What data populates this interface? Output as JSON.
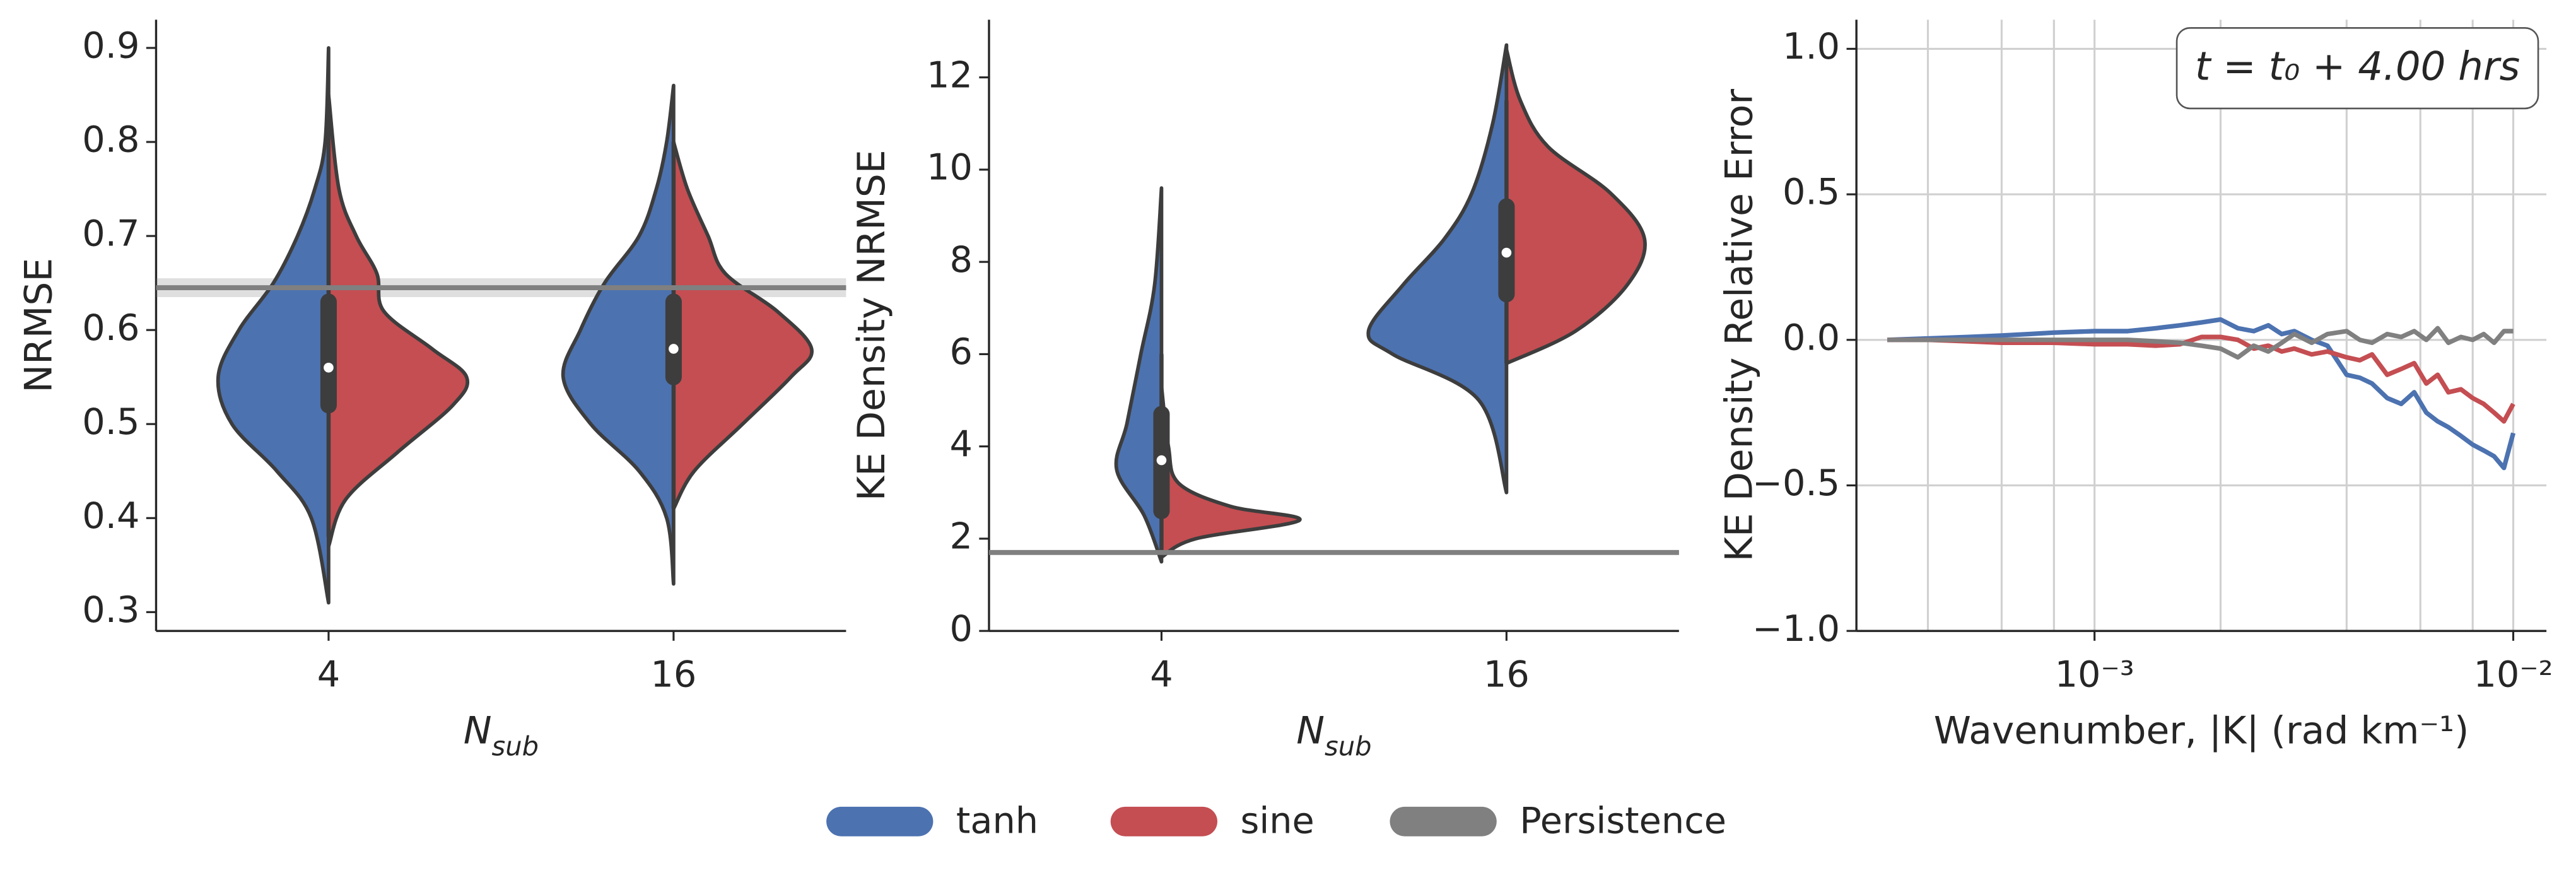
{
  "chart_data": [
    {
      "type": "violin",
      "ylabel": "NRMSE",
      "xlabel": "N",
      "xlabel_sub": "sub",
      "categories": [
        "4",
        "16"
      ],
      "ylim": [
        0.28,
        0.93
      ],
      "yticks": [
        0.3,
        0.4,
        0.5,
        0.6,
        0.7,
        0.8,
        0.9
      ],
      "series": [
        {
          "color": "#4c72b0",
          "side": "left",
          "violins": [
            {
              "y": [
                0.31,
                0.4,
                0.45,
                0.5,
                0.55,
                0.6,
                0.65,
                0.7,
                0.75,
                0.8,
                0.9
              ],
              "width": [
                0,
                0.05,
                0.15,
                0.28,
                0.32,
                0.26,
                0.16,
                0.09,
                0.04,
                0.01,
                0
              ]
            },
            {
              "y": [
                0.33,
                0.4,
                0.45,
                0.5,
                0.55,
                0.6,
                0.65,
                0.7,
                0.75,
                0.8,
                0.86
              ],
              "width": [
                0,
                0.02,
                0.1,
                0.24,
                0.32,
                0.27,
                0.2,
                0.1,
                0.05,
                0.02,
                0
              ]
            }
          ]
        },
        {
          "color": "#c44e52",
          "side": "right",
          "violins": [
            {
              "y": [
                0.37,
                0.42,
                0.47,
                0.52,
                0.55,
                0.58,
                0.62,
                0.66,
                0.7,
                0.75,
                0.85
              ],
              "width": [
                0,
                0.05,
                0.2,
                0.36,
                0.4,
                0.3,
                0.16,
                0.14,
                0.08,
                0.03,
                0
              ]
            },
            {
              "y": [
                0.41,
                0.45,
                0.5,
                0.55,
                0.58,
                0.62,
                0.66,
                0.7,
                0.75,
                0.8
              ],
              "width": [
                0,
                0.06,
                0.2,
                0.34,
                0.4,
                0.3,
                0.15,
                0.1,
                0.04,
                0
              ]
            }
          ]
        }
      ],
      "boxes": [
        {
          "whislo": 0.38,
          "q1": 0.52,
          "med": 0.56,
          "q3": 0.63,
          "whishi": 0.84
        },
        {
          "whislo": 0.41,
          "q1": 0.55,
          "med": 0.58,
          "q3": 0.63,
          "whishi": 0.8
        }
      ],
      "reference": {
        "value": 0.645,
        "ci": 0.01,
        "color": "#808080"
      }
    },
    {
      "type": "violin",
      "ylabel": "KE Density NRMSE",
      "xlabel": "N",
      "xlabel_sub": "sub",
      "categories": [
        "4",
        "16"
      ],
      "ylim": [
        0,
        13.25
      ],
      "yticks": [
        0,
        2,
        4,
        6,
        8,
        10,
        12
      ],
      "series": [
        {
          "color": "#4c72b0",
          "side": "left",
          "violins": [
            {
              "y": [
                1.5,
                2.5,
                3.5,
                4.5,
                6,
                7.5,
                9.6
              ],
              "width": [
                0,
                0.05,
                0.13,
                0.1,
                0.06,
                0.02,
                0
              ]
            },
            {
              "y": [
                3,
                5,
                6,
                6.5,
                7.5,
                8.5,
                9.5,
                11,
                12.7
              ],
              "width": [
                0,
                0.08,
                0.33,
                0.4,
                0.3,
                0.18,
                0.1,
                0.04,
                0
              ]
            }
          ]
        },
        {
          "color": "#c44e52",
          "side": "right",
          "violins": [
            {
              "y": [
                1.6,
                2,
                2.4,
                2.7,
                3.2,
                4,
                5.3
              ],
              "width": [
                0,
                0.1,
                0.4,
                0.2,
                0.05,
                0.02,
                0
              ]
            },
            {
              "y": [
                5.8,
                6.5,
                7.5,
                8.5,
                9.5,
                10.5,
                11.5,
                12.6
              ],
              "width": [
                0,
                0.2,
                0.35,
                0.4,
                0.3,
                0.12,
                0.04,
                0
              ]
            }
          ]
        }
      ],
      "boxes": [
        {
          "whislo": 1.6,
          "q1": 2.6,
          "med": 3.7,
          "q3": 4.7,
          "whishi": 6.0
        },
        {
          "whislo": 5.8,
          "q1": 7.3,
          "med": 8.2,
          "q3": 9.2,
          "whishi": 11.5
        }
      ],
      "reference": {
        "value": 1.7,
        "ci": 0.05,
        "color": "#808080"
      }
    },
    {
      "type": "line",
      "xscale": "log",
      "grid": true,
      "ylabel": "KE Density Relative Error",
      "xlabel": "Wavenumber, |K| (rad km⁻¹)",
      "annotation": "t = t₀ + 4.00 hrs",
      "xlim": [
        0.00027,
        0.012
      ],
      "xticks": [
        {
          "value": 0.001,
          "label": "10⁻³"
        },
        {
          "value": 0.01,
          "label": "10⁻²"
        }
      ],
      "xminorticks": [
        0.0004,
        0.0006,
        0.0008,
        0.002,
        0.004,
        0.006,
        0.008
      ],
      "ylim": [
        -1,
        1.1
      ],
      "yticks": [
        {
          "value": -1,
          "label": "−1.0"
        },
        {
          "value": -0.5,
          "label": "−0.5"
        },
        {
          "value": 0,
          "label": "0.0"
        },
        {
          "value": 0.5,
          "label": "0.5"
        },
        {
          "value": 1,
          "label": "1.0"
        }
      ],
      "x": [
        0.00032,
        0.0004,
        0.0005,
        0.0006,
        0.0007,
        0.0008,
        0.001,
        0.0012,
        0.0014,
        0.0016,
        0.0018,
        0.002,
        0.0022,
        0.0024,
        0.0026,
        0.0028,
        0.003,
        0.0033,
        0.0036,
        0.004,
        0.0043,
        0.0046,
        0.005,
        0.0054,
        0.0058,
        0.0062,
        0.0066,
        0.007,
        0.0075,
        0.008,
        0.0085,
        0.009,
        0.0095,
        0.01
      ],
      "series": [
        {
          "name": "tanh",
          "color": "#4c72b0",
          "values": [
            0,
            0.005,
            0.01,
            0.015,
            0.02,
            0.025,
            0.03,
            0.03,
            0.04,
            0.05,
            0.06,
            0.07,
            0.04,
            0.03,
            0.05,
            0.02,
            0.03,
            0,
            -0.02,
            -0.12,
            -0.13,
            -0.15,
            -0.2,
            -0.22,
            -0.18,
            -0.25,
            -0.28,
            -0.3,
            -0.33,
            -0.36,
            -0.38,
            -0.4,
            -0.44,
            -0.32
          ]
        },
        {
          "name": "sine",
          "color": "#c44e52",
          "values": [
            0,
            0,
            -0.005,
            -0.01,
            -0.01,
            -0.01,
            -0.015,
            -0.015,
            -0.02,
            -0.015,
            0.01,
            0.01,
            0,
            -0.03,
            -0.02,
            -0.04,
            -0.03,
            -0.05,
            -0.04,
            -0.06,
            -0.07,
            -0.05,
            -0.12,
            -0.1,
            -0.08,
            -0.15,
            -0.12,
            -0.18,
            -0.17,
            -0.2,
            -0.22,
            -0.25,
            -0.28,
            -0.22
          ]
        },
        {
          "name": "Persistence",
          "color": "#808080",
          "values": [
            0,
            0,
            0,
            0,
            0,
            0,
            0,
            0,
            -0.005,
            -0.01,
            -0.02,
            -0.03,
            -0.06,
            -0.02,
            -0.04,
            -0.01,
            0.02,
            -0.01,
            0.02,
            0.03,
            0,
            -0.01,
            0.02,
            0.01,
            0.03,
            0,
            0.04,
            -0.01,
            0.01,
            0,
            0.02,
            -0.01,
            0.03,
            0.03
          ]
        }
      ]
    }
  ]
}
